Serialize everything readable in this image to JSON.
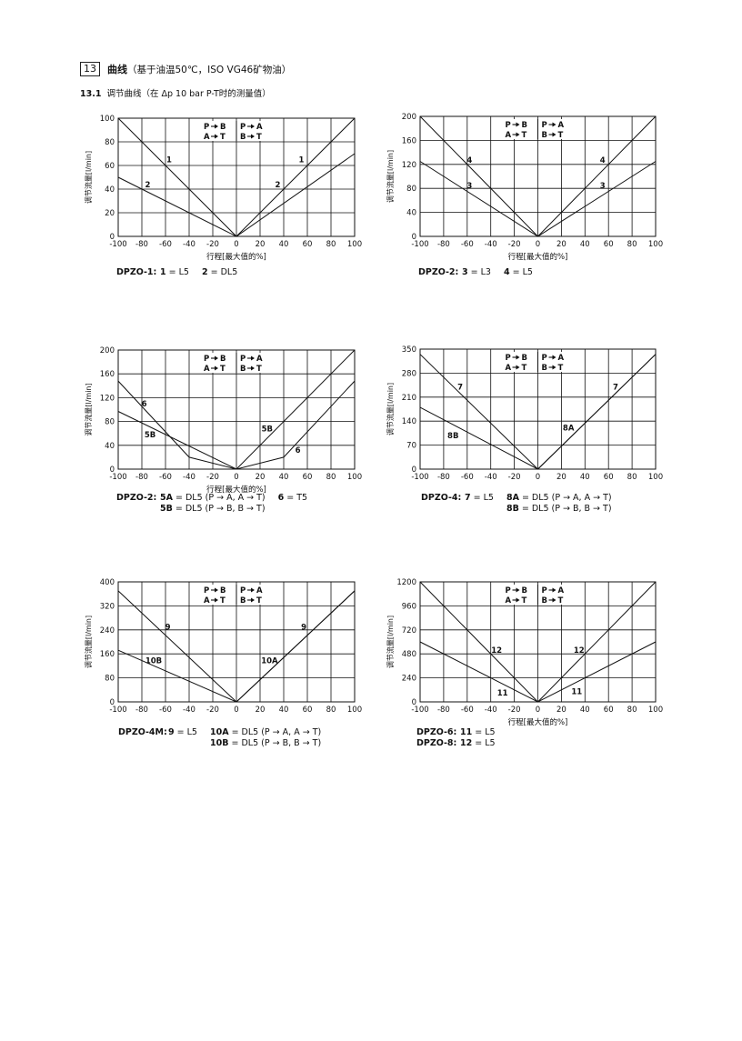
{
  "section": {
    "number": "13",
    "title_bold": "曲线",
    "title_rest": "（基于油温50℃，ISO VG46矿物油）"
  },
  "subsection": {
    "number": "13.1",
    "title": "调节曲线（在 Δp 10 bar P-T时的测量值）"
  },
  "flow_box": {
    "row1": [
      "P",
      "B",
      "P",
      "A"
    ],
    "row2": [
      "A",
      "T",
      "B",
      "T"
    ]
  },
  "chart_data": [
    {
      "type": "line",
      "xlabel": "行程[最大值的%]",
      "ylabel": "调节流量[l/min]",
      "xlim": [
        -100,
        100
      ],
      "ylim": [
        0,
        100
      ],
      "xticks": [
        -100,
        -80,
        -60,
        -40,
        -20,
        0,
        20,
        40,
        60,
        80,
        100
      ],
      "yticks": [
        0,
        20,
        40,
        60,
        80,
        100
      ],
      "series": [
        {
          "name": "1",
          "x": [
            -100,
            0,
            100
          ],
          "y": [
            100,
            0,
            100
          ]
        },
        {
          "name": "2",
          "x": [
            -100,
            0,
            100
          ],
          "y": [
            50,
            0,
            70
          ]
        }
      ],
      "annotations": [
        {
          "text": "1",
          "x": -57,
          "y": 65
        },
        {
          "text": "2",
          "x": -75,
          "y": 44
        },
        {
          "text": "1",
          "x": 55,
          "y": 65
        },
        {
          "text": "2",
          "x": 35,
          "y": 44
        }
      ]
    },
    {
      "type": "line",
      "xlabel": "行程[最大值的%]",
      "ylabel": "调节流量[l/min]",
      "xlim": [
        -100,
        100
      ],
      "ylim": [
        0,
        200
      ],
      "xticks": [
        -100,
        -80,
        -60,
        -40,
        -20,
        0,
        20,
        40,
        60,
        80,
        100
      ],
      "yticks": [
        0,
        40,
        80,
        120,
        160,
        200
      ],
      "series": [
        {
          "name": "4",
          "x": [
            -100,
            0,
            100
          ],
          "y": [
            200,
            0,
            200
          ]
        },
        {
          "name": "3",
          "x": [
            -100,
            0,
            100
          ],
          "y": [
            125,
            0,
            125
          ]
        }
      ],
      "annotations": [
        {
          "text": "4",
          "x": -58,
          "y": 127
        },
        {
          "text": "3",
          "x": -58,
          "y": 85
        },
        {
          "text": "4",
          "x": 55,
          "y": 127
        },
        {
          "text": "3",
          "x": 55,
          "y": 85
        }
      ]
    },
    {
      "type": "line",
      "xlabel": "行程[最大值的%]",
      "ylabel": "调节流量[l/min]",
      "xlim": [
        -100,
        100
      ],
      "ylim": [
        0,
        200
      ],
      "xticks": [
        -100,
        -80,
        -60,
        -40,
        -20,
        0,
        20,
        40,
        60,
        80,
        100
      ],
      "yticks": [
        0,
        40,
        80,
        120,
        160,
        200
      ],
      "series": [
        {
          "name": "6",
          "x": [
            -100,
            -40,
            0,
            40,
            100
          ],
          "y": [
            148,
            20,
            0,
            20,
            148
          ]
        },
        {
          "name": "5B",
          "x": [
            -100,
            0
          ],
          "y": [
            97,
            0
          ]
        },
        {
          "name": "5A",
          "x": [
            0,
            100
          ],
          "y": [
            0,
            200
          ]
        }
      ],
      "annotations": [
        {
          "text": "6",
          "x": -78,
          "y": 110
        },
        {
          "text": "5B",
          "x": -73,
          "y": 58
        },
        {
          "text": "5B",
          "x": 26,
          "y": 68
        },
        {
          "text": "6",
          "x": 52,
          "y": 32
        }
      ]
    },
    {
      "type": "line",
      "xlabel": "",
      "ylabel": "调节流量[l/min]",
      "xlim": [
        -100,
        100
      ],
      "ylim": [
        0,
        350
      ],
      "xticks": [
        -100,
        -80,
        -60,
        -40,
        -20,
        0,
        20,
        40,
        60,
        80,
        100
      ],
      "yticks": [
        0,
        70,
        140,
        210,
        280,
        350
      ],
      "series": [
        {
          "name": "7",
          "x": [
            -100,
            0,
            100
          ],
          "y": [
            335,
            0,
            335
          ]
        },
        {
          "name": "8B",
          "x": [
            -100,
            0
          ],
          "y": [
            180,
            0
          ]
        },
        {
          "name": "8A",
          "x": [
            0,
            100
          ],
          "y": [
            0,
            335
          ]
        }
      ],
      "annotations": [
        {
          "text": "7",
          "x": -66,
          "y": 240
        },
        {
          "text": "8B",
          "x": -72,
          "y": 98
        },
        {
          "text": "8A",
          "x": 26,
          "y": 120
        },
        {
          "text": "7",
          "x": 66,
          "y": 240
        }
      ]
    },
    {
      "type": "line",
      "xlabel": "",
      "ylabel": "调节流量[l/min]",
      "xlim": [
        -100,
        100
      ],
      "ylim": [
        0,
        400
      ],
      "xticks": [
        -100,
        -80,
        -60,
        -40,
        -20,
        0,
        20,
        40,
        60,
        80,
        100
      ],
      "yticks": [
        0,
        80,
        160,
        240,
        320,
        400
      ],
      "series": [
        {
          "name": "9",
          "x": [
            -100,
            0,
            100
          ],
          "y": [
            370,
            0,
            370
          ]
        },
        {
          "name": "10B",
          "x": [
            -100,
            0
          ],
          "y": [
            172,
            0
          ]
        },
        {
          "name": "10A",
          "x": [
            0,
            100
          ],
          "y": [
            0,
            370
          ]
        }
      ],
      "annotations": [
        {
          "text": "9",
          "x": -58,
          "y": 250
        },
        {
          "text": "10B",
          "x": -70,
          "y": 138
        },
        {
          "text": "10A",
          "x": 28,
          "y": 138
        },
        {
          "text": "9",
          "x": 57,
          "y": 250
        }
      ]
    },
    {
      "type": "line",
      "xlabel": "行程[最大值的%]",
      "ylabel": "调节流量[l/min]",
      "xlim": [
        -100,
        100
      ],
      "ylim": [
        0,
        1200
      ],
      "xticks": [
        -100,
        -80,
        -60,
        -40,
        -20,
        0,
        20,
        40,
        60,
        80,
        100
      ],
      "yticks": [
        0,
        240,
        480,
        720,
        960,
        1200
      ],
      "series": [
        {
          "name": "12",
          "x": [
            -100,
            0,
            100
          ],
          "y": [
            1200,
            0,
            1200
          ]
        },
        {
          "name": "11",
          "x": [
            -100,
            0,
            100
          ],
          "y": [
            600,
            0,
            600
          ]
        }
      ],
      "annotations": [
        {
          "text": "12",
          "x": -35,
          "y": 520
        },
        {
          "text": "11",
          "x": -30,
          "y": 90
        },
        {
          "text": "12",
          "x": 35,
          "y": 520
        },
        {
          "text": "11",
          "x": 33,
          "y": 105
        }
      ]
    }
  ],
  "captions": [
    {
      "model": "DPZO-1:",
      "lines": [
        [
          {
            "k": "1"
          },
          {
            "t": " = L5"
          },
          {
            "gap": true
          },
          {
            "k": "2"
          },
          {
            "t": " = DL5"
          }
        ]
      ]
    },
    {
      "model": "DPZO-2:",
      "lines": [
        [
          {
            "k": "3"
          },
          {
            "t": " = L3"
          },
          {
            "gap": true
          },
          {
            "k": "4"
          },
          {
            "t": " = L5"
          }
        ]
      ]
    },
    {
      "model": "DPZO-2:",
      "lines": [
        [
          {
            "k": "5A"
          },
          {
            "t": " = DL5 (P → A, A → T)"
          },
          {
            "gap": true
          },
          {
            "k": "6"
          },
          {
            "t": " = T5"
          }
        ],
        [
          {
            "k": "5B"
          },
          {
            "t": " = DL5 (P → B, B → T)"
          }
        ]
      ]
    },
    {
      "model": "DPZO-4:",
      "lines": [
        [
          {
            "k": "7"
          },
          {
            "t": " = L5"
          },
          {
            "gap": true
          },
          {
            "k": "8A"
          },
          {
            "t": " = DL5 (P → A, A → T)"
          }
        ],
        [
          {
            "pad": true
          },
          {
            "k": "8B"
          },
          {
            "t": " = DL5 (P → B, B → T)"
          }
        ]
      ]
    },
    {
      "model": "DPZO-4M:",
      "lines": [
        [
          {
            "k": "9"
          },
          {
            "t": " = L5"
          },
          {
            "gap": true
          },
          {
            "k": "10A"
          },
          {
            "t": " = DL5 (P → A, A → T)"
          }
        ],
        [
          {
            "pad": true
          },
          {
            "k": "10B"
          },
          {
            "t": " = DL5 (P → B, B → T)"
          }
        ]
      ]
    },
    {
      "model": "DPZO-6:",
      "lines": [
        [
          {
            "k": "11"
          },
          {
            "t": " = L5"
          }
        ]
      ]
    },
    {
      "model": "DPZO-8:",
      "lines": [
        [
          {
            "k": "12"
          },
          {
            "t": " = L5"
          }
        ]
      ]
    }
  ]
}
